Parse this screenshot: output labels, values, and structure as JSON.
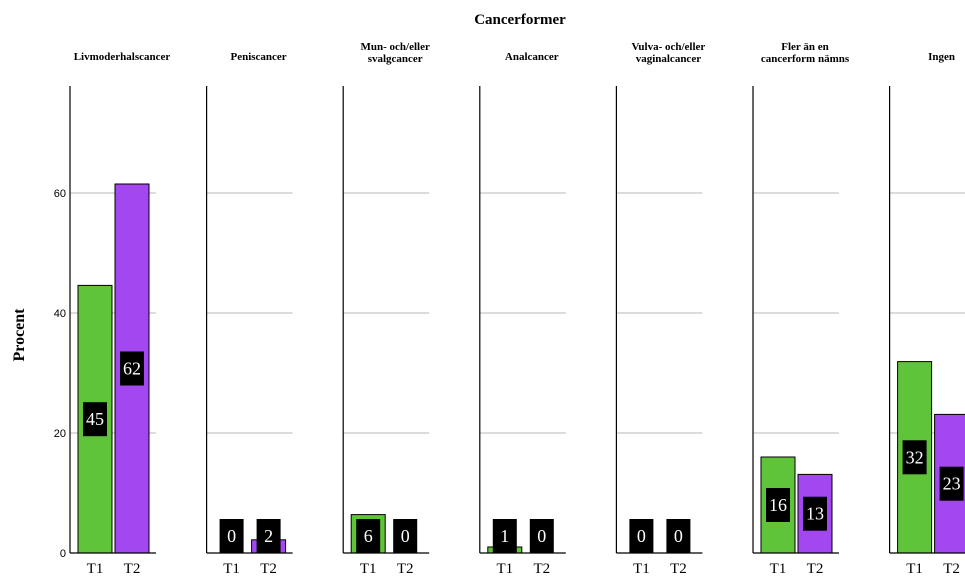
{
  "chart_data": {
    "type": "bar",
    "title": "Cancerformer",
    "ylabel": "Procent",
    "xlabel": "",
    "ylim": [
      0,
      76
    ],
    "yticks": [
      0,
      20,
      40,
      60
    ],
    "grid": true,
    "colors": {
      "T1": "#5fc43a",
      "T2": "#a347f0",
      "label_bg": "#000000",
      "label_text": "#ffffff"
    },
    "categories": [
      "T1",
      "T2"
    ],
    "panels": [
      {
        "name": "Livmoderhalscancer",
        "name_lines": [
          "Livmoderhalscancer"
        ],
        "values": [
          44.6,
          61.5
        ],
        "labels": [
          "45",
          "62"
        ]
      },
      {
        "name": "Peniscancer",
        "name_lines": [
          "Peniscancer"
        ],
        "values": [
          0,
          2.2
        ],
        "labels": [
          "0",
          "2"
        ]
      },
      {
        "name": "Mun- och/eller svalgcancer",
        "name_lines": [
          "Mun- och/eller",
          "svalgcancer"
        ],
        "values": [
          6.4,
          0
        ],
        "labels": [
          "6",
          "0"
        ]
      },
      {
        "name": "Analcancer",
        "name_lines": [
          "Analcancer"
        ],
        "values": [
          1.0,
          0
        ],
        "labels": [
          "1",
          "0"
        ]
      },
      {
        "name": "Vulva- och/eller vaginalcancer",
        "name_lines": [
          "Vulva- och/eller",
          "vaginalcancer"
        ],
        "values": [
          0,
          0
        ],
        "labels": [
          "0",
          "0"
        ]
      },
      {
        "name": "Fler än en cancerform nämns",
        "name_lines": [
          "Fler än en",
          "cancerform nämns"
        ],
        "values": [
          16.0,
          13.1
        ],
        "labels": [
          "16",
          "13"
        ]
      },
      {
        "name": "Ingen",
        "name_lines": [
          "Ingen"
        ],
        "values": [
          31.9,
          23.1
        ],
        "labels": [
          "32",
          "23"
        ]
      }
    ]
  }
}
